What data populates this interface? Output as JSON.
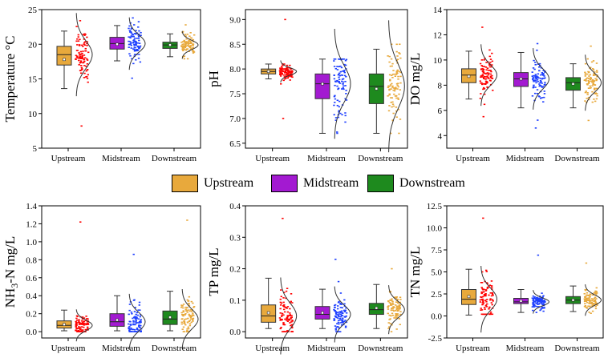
{
  "colors": {
    "Upstream": "#E8A93C",
    "Midstream": "#A31AD1",
    "Downstream": "#1E8A1E",
    "Upstream_scatter": "#FF0000",
    "Midstream_scatter": "#1F40FF",
    "Downstream_scatter": "#E8A93C"
  },
  "legend": [
    {
      "name": "Upstream",
      "color": "#E8A93C"
    },
    {
      "name": "Midstream",
      "color": "#A31AD1"
    },
    {
      "name": "Downstream",
      "color": "#1E8A1E"
    }
  ],
  "chart_data": [
    {
      "type": "box",
      "ylabel": "Temperature °C",
      "ylim": [
        5,
        25
      ],
      "yticks": [
        "5",
        "10",
        "15",
        "20",
        "25"
      ],
      "categories": [
        "Upstream",
        "Midstream",
        "Downstream"
      ],
      "series": [
        {
          "name": "Upstream",
          "q1": 17.0,
          "median": 18.5,
          "q3": 19.7,
          "mean": 17.8,
          "whisker_low": 13.6,
          "whisker_high": 21.9,
          "points_min": 8.2,
          "points_max": 23.4
        },
        {
          "name": "Midstream",
          "q1": 19.3,
          "median": 20.1,
          "q3": 21.0,
          "mean": 20.0,
          "whisker_low": 17.6,
          "whisker_high": 22.7,
          "points_min": 15.1,
          "points_max": 23.8
        },
        {
          "name": "Downstream",
          "q1": 19.4,
          "median": 19.9,
          "q3": 20.3,
          "mean": 19.9,
          "whisker_low": 18.2,
          "whisker_high": 21.5,
          "points_min": 17.9,
          "points_max": 22.8
        }
      ]
    },
    {
      "type": "box",
      "ylabel": "pH",
      "ylim": [
        6.4,
        9.2
      ],
      "yticks": [
        "6.5",
        "7.0",
        "7.5",
        "8.0",
        "8.5",
        "9.0"
      ],
      "categories": [
        "Upstream",
        "Midstream",
        "Downstream"
      ],
      "series": [
        {
          "name": "Upstream",
          "q1": 7.9,
          "median": 7.95,
          "q3": 8.0,
          "mean": 7.95,
          "whisker_low": 7.8,
          "whisker_high": 8.1,
          "points_min": 7.0,
          "points_max": 9.0
        },
        {
          "name": "Midstream",
          "q1": 7.4,
          "median": 7.7,
          "q3": 7.9,
          "mean": 7.7,
          "whisker_low": 6.7,
          "whisker_high": 8.2,
          "points_min": 6.7,
          "points_max": 8.2
        },
        {
          "name": "Downstream",
          "q1": 7.3,
          "median": 7.65,
          "q3": 7.9,
          "mean": 7.6,
          "whisker_low": 6.7,
          "whisker_high": 8.4,
          "points_min": 6.7,
          "points_max": 8.5
        }
      ]
    },
    {
      "type": "box",
      "ylabel": "DO mg/L",
      "ylim": [
        3,
        14
      ],
      "yticks": [
        "4",
        "6",
        "8",
        "10",
        "12",
        "14"
      ],
      "categories": [
        "Upstream",
        "Midstream",
        "Downstream"
      ],
      "series": [
        {
          "name": "Upstream",
          "q1": 8.2,
          "median": 8.8,
          "q3": 9.3,
          "mean": 8.7,
          "whisker_low": 6.9,
          "whisker_high": 10.7,
          "points_min": 5.5,
          "points_max": 12.6
        },
        {
          "name": "Midstream",
          "q1": 7.9,
          "median": 8.5,
          "q3": 9.0,
          "mean": 8.5,
          "whisker_low": 6.2,
          "whisker_high": 10.6,
          "points_min": 4.6,
          "points_max": 11.3
        },
        {
          "name": "Downstream",
          "q1": 7.6,
          "median": 8.2,
          "q3": 8.6,
          "mean": 8.1,
          "whisker_low": 6.2,
          "whisker_high": 9.7,
          "points_min": 5.2,
          "points_max": 11.1
        }
      ]
    },
    {
      "type": "box",
      "ylabel": "NH3-N mg/L",
      "ylim": [
        -0.07,
        1.4
      ],
      "yticks": [
        "0.0",
        "0.2",
        "0.4",
        "0.6",
        "0.8",
        "1.0",
        "1.2",
        "1.4"
      ],
      "categories": [
        "Upstream",
        "Midstream",
        "Downstream"
      ],
      "series": [
        {
          "name": "Upstream",
          "q1": 0.04,
          "median": 0.07,
          "q3": 0.12,
          "mean": 0.08,
          "whisker_low": 0.01,
          "whisker_high": 0.24,
          "points_min": 0.0,
          "points_max": 1.22
        },
        {
          "name": "Midstream",
          "q1": 0.06,
          "median": 0.11,
          "q3": 0.2,
          "mean": 0.13,
          "whisker_low": 0.01,
          "whisker_high": 0.4,
          "points_min": 0.0,
          "points_max": 0.86
        },
        {
          "name": "Downstream",
          "q1": 0.08,
          "median": 0.14,
          "q3": 0.23,
          "mean": 0.16,
          "whisker_low": 0.01,
          "whisker_high": 0.45,
          "points_min": 0.0,
          "points_max": 1.24
        }
      ]
    },
    {
      "type": "box",
      "ylabel": "TP mg/L",
      "ylim": [
        -0.02,
        0.4
      ],
      "yticks": [
        "0.0",
        "0.1",
        "0.2",
        "0.3",
        "0.4"
      ],
      "categories": [
        "Upstream",
        "Midstream",
        "Downstream"
      ],
      "series": [
        {
          "name": "Upstream",
          "q1": 0.03,
          "median": 0.05,
          "q3": 0.085,
          "mean": 0.06,
          "whisker_low": 0.01,
          "whisker_high": 0.17,
          "points_min": 0.0,
          "points_max": 0.36
        },
        {
          "name": "Midstream",
          "q1": 0.04,
          "median": 0.055,
          "q3": 0.08,
          "mean": 0.06,
          "whisker_low": 0.01,
          "whisker_high": 0.135,
          "points_min": 0.0,
          "points_max": 0.23
        },
        {
          "name": "Downstream",
          "q1": 0.055,
          "median": 0.07,
          "q3": 0.09,
          "mean": 0.075,
          "whisker_low": 0.01,
          "whisker_high": 0.15,
          "points_min": 0.0,
          "points_max": 0.2
        }
      ]
    },
    {
      "type": "box",
      "ylabel": "TN mg/L",
      "ylim": [
        -2.5,
        12.5
      ],
      "yticks": [
        "-2.5",
        "0.0",
        "2.5",
        "5.0",
        "7.5",
        "10.0",
        "12.5"
      ],
      "categories": [
        "Upstream",
        "Midstream",
        "Downstream"
      ],
      "series": [
        {
          "name": "Upstream",
          "q1": 1.3,
          "median": 1.9,
          "q3": 3.0,
          "mean": 2.2,
          "whisker_low": 0.1,
          "whisker_high": 5.3,
          "points_min": 0.2,
          "points_max": 11.1
        },
        {
          "name": "Midstream",
          "q1": 1.4,
          "median": 1.6,
          "q3": 2.0,
          "mean": 1.7,
          "whisker_low": 0.4,
          "whisker_high": 3.0,
          "points_min": 0.4,
          "points_max": 6.9
        },
        {
          "name": "Downstream",
          "q1": 1.4,
          "median": 1.8,
          "q3": 2.2,
          "mean": 1.8,
          "whisker_low": 0.5,
          "whisker_high": 3.4,
          "points_min": 0.3,
          "points_max": 6.0
        }
      ]
    }
  ]
}
